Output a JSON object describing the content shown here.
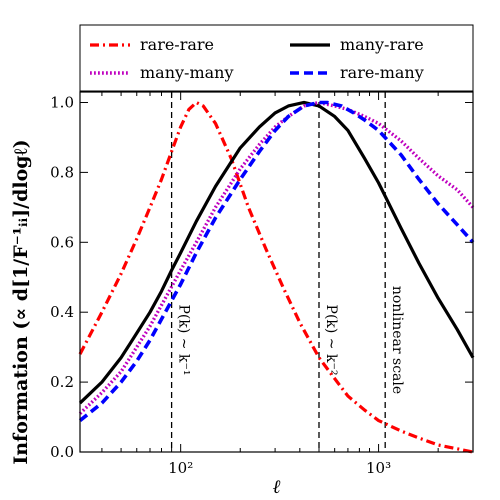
{
  "chart_data": {
    "type": "line",
    "xlabel": "ℓ",
    "ylabel": "Information  (∝ d[1/F⁻¹ᵢᵢ]/dlogℓ)",
    "x_scale": "log",
    "xlim": [
      31,
      3000
    ],
    "ylim": [
      0.0,
      1.03
    ],
    "x_ticks": [
      {
        "value": 100,
        "label": "10²"
      },
      {
        "value": 1000,
        "label": "10³"
      }
    ],
    "y_ticks": [
      {
        "value": 0.0,
        "label": "0.0"
      },
      {
        "value": 0.2,
        "label": "0.2"
      },
      {
        "value": 0.4,
        "label": "0.4"
      },
      {
        "value": 0.6,
        "label": "0.6"
      },
      {
        "value": 0.8,
        "label": "0.8"
      },
      {
        "value": 1.0,
        "label": "1.0"
      }
    ],
    "grid": false,
    "legend_position": "top, above plot, two columns",
    "series": [
      {
        "name": "rare-rare",
        "color": "#ff0000",
        "style": "dashdot",
        "points": [
          [
            31,
            0.28
          ],
          [
            40,
            0.4
          ],
          [
            50,
            0.51
          ],
          [
            60,
            0.61
          ],
          [
            70,
            0.7
          ],
          [
            80,
            0.78
          ],
          [
            90,
            0.86
          ],
          [
            100,
            0.93
          ],
          [
            110,
            0.98
          ],
          [
            120,
            1.0
          ],
          [
            130,
            0.99
          ],
          [
            150,
            0.94
          ],
          [
            180,
            0.84
          ],
          [
            220,
            0.7
          ],
          [
            270,
            0.58
          ],
          [
            330,
            0.47
          ],
          [
            400,
            0.37
          ],
          [
            500,
            0.27
          ],
          [
            600,
            0.21
          ],
          [
            700,
            0.16
          ],
          [
            850,
            0.12
          ],
          [
            1000,
            0.09
          ],
          [
            1300,
            0.06
          ],
          [
            1600,
            0.04
          ],
          [
            2000,
            0.02
          ],
          [
            3000,
            0.0
          ]
        ]
      },
      {
        "name": "many-rare",
        "color": "#000000",
        "style": "solid",
        "points": [
          [
            31,
            0.14
          ],
          [
            40,
            0.2
          ],
          [
            50,
            0.27
          ],
          [
            60,
            0.34
          ],
          [
            70,
            0.4
          ],
          [
            80,
            0.46
          ],
          [
            90,
            0.52
          ],
          [
            100,
            0.57
          ],
          [
            120,
            0.66
          ],
          [
            150,
            0.76
          ],
          [
            200,
            0.87
          ],
          [
            250,
            0.93
          ],
          [
            300,
            0.97
          ],
          [
            350,
            0.99
          ],
          [
            420,
            1.0
          ],
          [
            500,
            0.99
          ],
          [
            600,
            0.96
          ],
          [
            700,
            0.92
          ],
          [
            850,
            0.84
          ],
          [
            1000,
            0.77
          ],
          [
            1300,
            0.64
          ],
          [
            1600,
            0.54
          ],
          [
            2000,
            0.44
          ],
          [
            2500,
            0.35
          ],
          [
            3000,
            0.27
          ]
        ]
      },
      {
        "name": "many-many",
        "color": "#bf00bf",
        "style": "dotted",
        "points": [
          [
            31,
            0.11
          ],
          [
            40,
            0.17
          ],
          [
            50,
            0.23
          ],
          [
            60,
            0.3
          ],
          [
            70,
            0.36
          ],
          [
            80,
            0.42
          ],
          [
            100,
            0.52
          ],
          [
            120,
            0.6
          ],
          [
            150,
            0.7
          ],
          [
            200,
            0.81
          ],
          [
            250,
            0.88
          ],
          [
            300,
            0.93
          ],
          [
            350,
            0.96
          ],
          [
            420,
            0.99
          ],
          [
            500,
            1.0
          ],
          [
            600,
            0.99
          ],
          [
            700,
            0.98
          ],
          [
            850,
            0.96
          ],
          [
            1000,
            0.94
          ],
          [
            1300,
            0.89
          ],
          [
            1600,
            0.84
          ],
          [
            2000,
            0.79
          ],
          [
            2500,
            0.75
          ],
          [
            3000,
            0.7
          ]
        ]
      },
      {
        "name": "rare-many",
        "color": "#0000ff",
        "style": "dashed",
        "points": [
          [
            31,
            0.09
          ],
          [
            40,
            0.14
          ],
          [
            50,
            0.2
          ],
          [
            60,
            0.26
          ],
          [
            70,
            0.32
          ],
          [
            80,
            0.38
          ],
          [
            100,
            0.48
          ],
          [
            120,
            0.57
          ],
          [
            150,
            0.67
          ],
          [
            200,
            0.78
          ],
          [
            250,
            0.86
          ],
          [
            300,
            0.92
          ],
          [
            350,
            0.96
          ],
          [
            420,
            0.99
          ],
          [
            500,
            1.0
          ],
          [
            550,
            1.0
          ],
          [
            650,
            0.99
          ],
          [
            750,
            0.97
          ],
          [
            850,
            0.95
          ],
          [
            1000,
            0.92
          ],
          [
            1300,
            0.85
          ],
          [
            1600,
            0.78
          ],
          [
            2000,
            0.71
          ],
          [
            2500,
            0.65
          ],
          [
            3000,
            0.6
          ]
        ]
      }
    ],
    "vlines": [
      {
        "x": 90,
        "label": "P(k) ~ k⁻¹"
      },
      {
        "x": 500,
        "label": "P(k) ~ k⁻²"
      },
      {
        "x": 1080,
        "label": "nonlinear scale"
      }
    ]
  }
}
